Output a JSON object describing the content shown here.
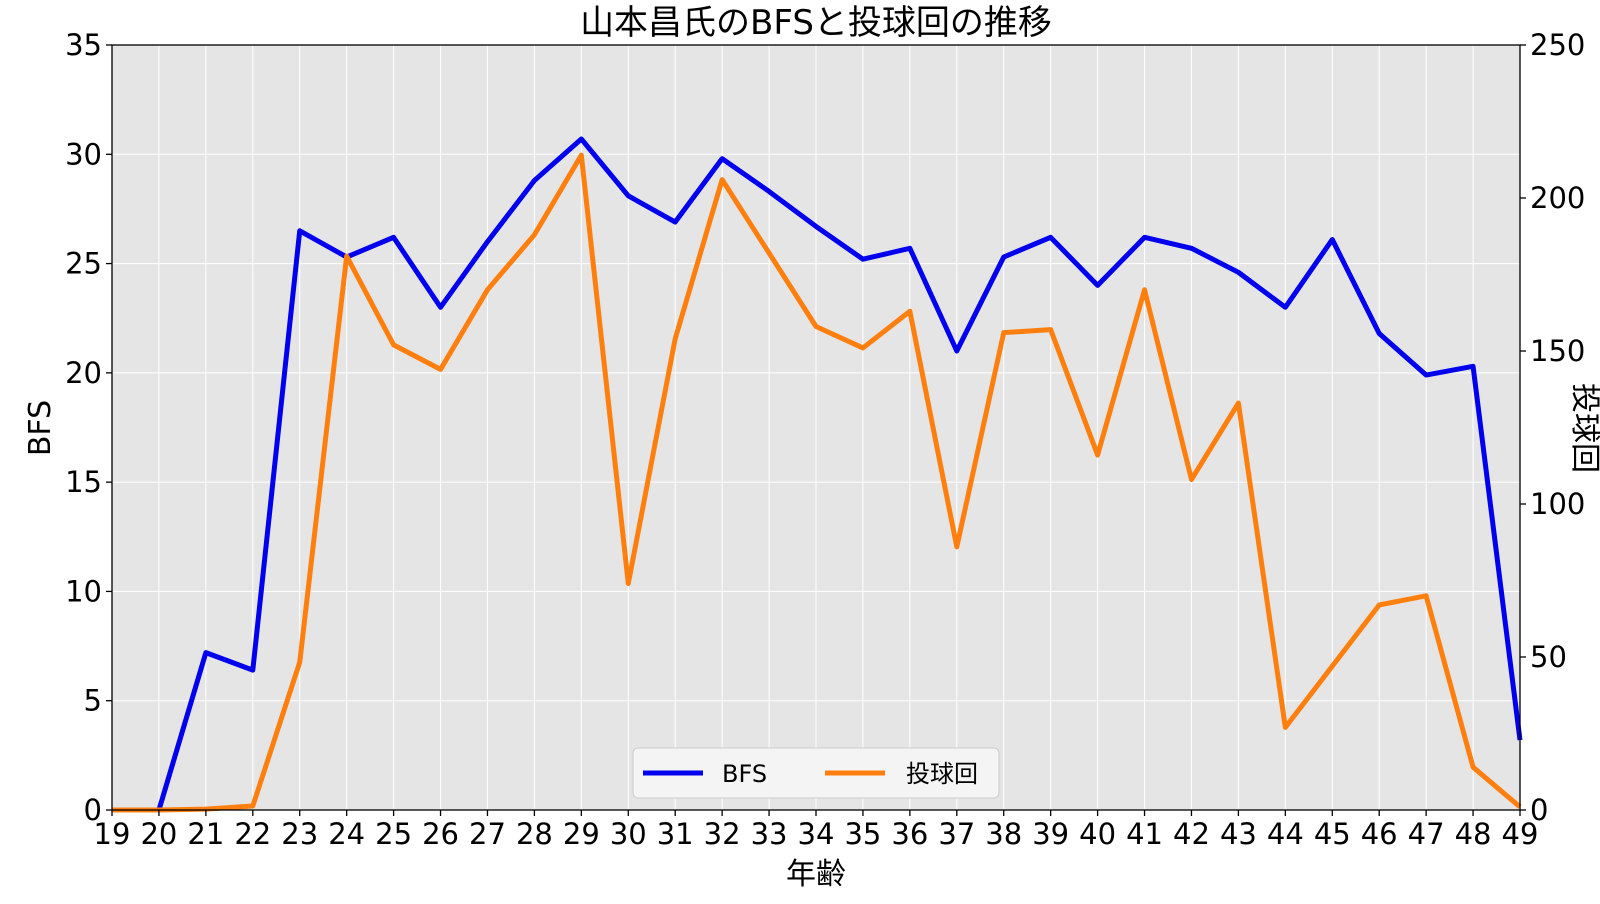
{
  "chart_data": {
    "type": "line",
    "title": "山本昌氏のBFSと投球回の推移",
    "xlabel": "年齢",
    "ylabel": "BFS",
    "y2label": "投球回",
    "x": [
      19,
      20,
      21,
      22,
      23,
      24,
      25,
      26,
      27,
      28,
      29,
      30,
      31,
      32,
      33,
      34,
      35,
      36,
      37,
      38,
      39,
      40,
      41,
      42,
      43,
      44,
      45,
      46,
      47,
      48,
      49
    ],
    "xlim": [
      19,
      49
    ],
    "ylim": [
      0,
      35
    ],
    "y2lim": [
      0,
      250
    ],
    "yticks": [
      0,
      5,
      10,
      15,
      20,
      25,
      30,
      35
    ],
    "y2ticks": [
      0,
      50,
      100,
      150,
      200,
      250
    ],
    "grid": true,
    "legend": "lower center",
    "series": [
      {
        "name": "BFS",
        "axis": "left",
        "color": "#0000ee",
        "values": [
          0,
          0,
          7.2,
          6.4,
          26.5,
          25.3,
          26.2,
          23.0,
          26.0,
          28.8,
          30.7,
          28.1,
          26.9,
          29.8,
          28.3,
          26.7,
          25.2,
          25.7,
          21.0,
          25.3,
          26.2,
          24.0,
          26.2,
          25.7,
          24.6,
          23.0,
          26.1,
          21.8,
          19.9,
          20.3,
          3.2
        ]
      },
      {
        "name": "投球回",
        "axis": "right",
        "color": "#ff7f0e",
        "values": [
          0,
          0,
          0.3,
          1.3,
          48.3,
          181,
          152,
          144,
          170,
          188,
          214,
          74,
          154,
          206,
          182,
          158,
          151,
          163,
          86,
          156,
          157,
          116,
          170,
          108,
          133,
          27,
          47,
          67,
          70,
          14,
          1
        ]
      }
    ]
  }
}
